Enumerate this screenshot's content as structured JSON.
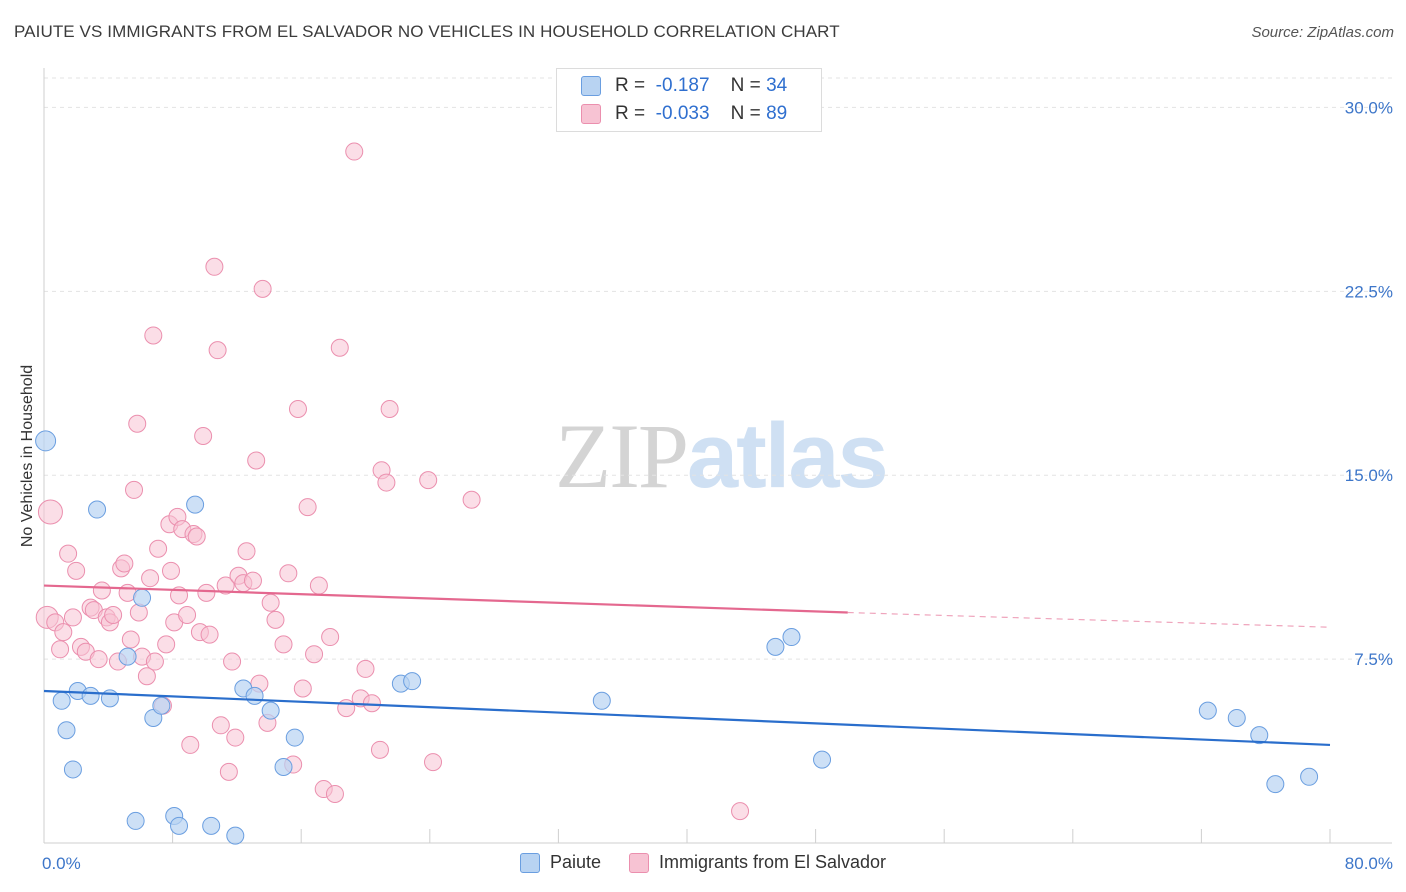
{
  "title": "PAIUTE VS IMMIGRANTS FROM EL SALVADOR NO VEHICLES IN HOUSEHOLD CORRELATION CHART",
  "source": "Source: ZipAtlas.com",
  "watermark": {
    "zip": "ZIP",
    "atlas": "atlas"
  },
  "colors": {
    "paiute_fill": "#b8d3f2",
    "paiute_stroke": "#6a9ee0",
    "paiute_line": "#2a6ecc",
    "salvador_fill": "#f7c3d3",
    "salvador_stroke": "#eb8fae",
    "salvador_line": "#e4688f"
  },
  "legend_top": [
    {
      "r_label": "R =",
      "r_value": "-0.187",
      "n_label": "N =",
      "n_value": "34"
    },
    {
      "r_label": "R =",
      "r_value": "-0.033",
      "n_label": "N =",
      "n_value": "89"
    }
  ],
  "chart_data": {
    "type": "scatter",
    "title": "PAIUTE VS IMMIGRANTS FROM EL SALVADOR NO VEHICLES IN HOUSEHOLD CORRELATION CHART",
    "xlabel": "",
    "ylabel": "No Vehicles in Household",
    "xlim": [
      0,
      80
    ],
    "ylim": [
      0,
      31.2
    ],
    "x_tick_labels": [
      "0.0%",
      "80.0%"
    ],
    "y_ticks": [
      7.5,
      15.0,
      22.5,
      30.0
    ],
    "y_tick_labels": [
      "7.5%",
      "15.0%",
      "22.5%",
      "30.0%"
    ],
    "grid": "horizontal dashed",
    "legend_placement": "bottom-center",
    "series": [
      {
        "name": "Paiute",
        "r": -0.187,
        "n": 34,
        "trend": {
          "x": [
            0,
            80
          ],
          "y": [
            6.2,
            4.0
          ]
        },
        "points": [
          [
            0.1,
            16.4
          ],
          [
            1.1,
            5.8
          ],
          [
            1.4,
            4.6
          ],
          [
            1.8,
            3.0
          ],
          [
            2.1,
            6.2
          ],
          [
            2.9,
            6.0
          ],
          [
            3.3,
            13.6
          ],
          [
            4.1,
            5.9
          ],
          [
            5.2,
            7.6
          ],
          [
            5.7,
            0.9
          ],
          [
            6.1,
            10.0
          ],
          [
            6.8,
            5.1
          ],
          [
            7.3,
            5.6
          ],
          [
            8.1,
            1.1
          ],
          [
            8.4,
            0.7
          ],
          [
            9.4,
            13.8
          ],
          [
            10.4,
            0.7
          ],
          [
            11.9,
            0.3
          ],
          [
            12.4,
            6.3
          ],
          [
            13.1,
            6.0
          ],
          [
            14.1,
            5.4
          ],
          [
            14.9,
            3.1
          ],
          [
            15.6,
            4.3
          ],
          [
            22.2,
            6.5
          ],
          [
            22.9,
            6.6
          ],
          [
            34.7,
            5.8
          ],
          [
            45.5,
            8.0
          ],
          [
            46.5,
            8.4
          ],
          [
            48.4,
            3.4
          ],
          [
            72.4,
            5.4
          ],
          [
            74.2,
            5.1
          ],
          [
            75.6,
            4.4
          ],
          [
            76.6,
            2.4
          ],
          [
            78.7,
            2.7
          ]
        ]
      },
      {
        "name": "Immigrants from El Salvador",
        "r": -0.033,
        "n": 89,
        "trend": {
          "x": [
            0,
            50
          ],
          "y": [
            10.5,
            9.4
          ]
        },
        "trend_ext": {
          "x": [
            50,
            80
          ],
          "y": [
            9.4,
            8.8
          ]
        },
        "points": [
          [
            0.2,
            9.2
          ],
          [
            0.4,
            13.5
          ],
          [
            0.7,
            9.0
          ],
          [
            1.0,
            7.9
          ],
          [
            1.2,
            8.6
          ],
          [
            1.5,
            11.8
          ],
          [
            1.8,
            9.2
          ],
          [
            2.0,
            11.1
          ],
          [
            2.3,
            8.0
          ],
          [
            2.6,
            7.8
          ],
          [
            2.9,
            9.6
          ],
          [
            3.1,
            9.5
          ],
          [
            3.4,
            7.5
          ],
          [
            3.6,
            10.3
          ],
          [
            3.9,
            9.2
          ],
          [
            4.1,
            9.0
          ],
          [
            4.3,
            9.3
          ],
          [
            4.6,
            7.4
          ],
          [
            4.8,
            11.2
          ],
          [
            5.0,
            11.4
          ],
          [
            5.2,
            10.2
          ],
          [
            5.4,
            8.3
          ],
          [
            5.6,
            14.4
          ],
          [
            5.8,
            17.1
          ],
          [
            5.9,
            9.4
          ],
          [
            6.1,
            7.6
          ],
          [
            6.4,
            6.8
          ],
          [
            6.6,
            10.8
          ],
          [
            6.8,
            20.7
          ],
          [
            6.9,
            7.4
          ],
          [
            7.1,
            12.0
          ],
          [
            7.4,
            5.6
          ],
          [
            7.6,
            8.1
          ],
          [
            7.8,
            13.0
          ],
          [
            7.9,
            11.1
          ],
          [
            8.1,
            9.0
          ],
          [
            8.3,
            13.3
          ],
          [
            8.4,
            10.1
          ],
          [
            8.6,
            12.8
          ],
          [
            8.9,
            9.3
          ],
          [
            9.1,
            4.0
          ],
          [
            9.3,
            12.6
          ],
          [
            9.5,
            12.5
          ],
          [
            9.7,
            8.6
          ],
          [
            9.9,
            16.6
          ],
          [
            10.1,
            10.2
          ],
          [
            10.3,
            8.5
          ],
          [
            10.6,
            23.5
          ],
          [
            10.8,
            20.1
          ],
          [
            11.0,
            4.8
          ],
          [
            11.3,
            10.5
          ],
          [
            11.5,
            2.9
          ],
          [
            11.7,
            7.4
          ],
          [
            11.9,
            4.3
          ],
          [
            12.1,
            10.9
          ],
          [
            12.4,
            10.6
          ],
          [
            12.6,
            11.9
          ],
          [
            13.0,
            10.7
          ],
          [
            13.2,
            15.6
          ],
          [
            13.4,
            6.5
          ],
          [
            13.6,
            22.6
          ],
          [
            13.9,
            4.9
          ],
          [
            14.1,
            9.8
          ],
          [
            14.4,
            9.1
          ],
          [
            14.9,
            8.1
          ],
          [
            15.2,
            11.0
          ],
          [
            15.5,
            3.2
          ],
          [
            15.8,
            17.7
          ],
          [
            16.1,
            6.3
          ],
          [
            16.4,
            13.7
          ],
          [
            16.8,
            7.7
          ],
          [
            17.1,
            10.5
          ],
          [
            17.4,
            2.2
          ],
          [
            17.8,
            8.4
          ],
          [
            18.1,
            2.0
          ],
          [
            18.4,
            20.2
          ],
          [
            18.8,
            5.5
          ],
          [
            19.3,
            28.2
          ],
          [
            19.7,
            5.9
          ],
          [
            20.0,
            7.1
          ],
          [
            20.4,
            5.7
          ],
          [
            20.9,
            3.8
          ],
          [
            21.0,
            15.2
          ],
          [
            21.3,
            14.7
          ],
          [
            21.5,
            17.7
          ],
          [
            23.9,
            14.8
          ],
          [
            24.2,
            3.3
          ],
          [
            26.6,
            14.0
          ],
          [
            43.3,
            1.3
          ]
        ]
      }
    ]
  },
  "legend_bottom": [
    {
      "label": "Paiute"
    },
    {
      "label": "Immigrants from El Salvador"
    }
  ]
}
